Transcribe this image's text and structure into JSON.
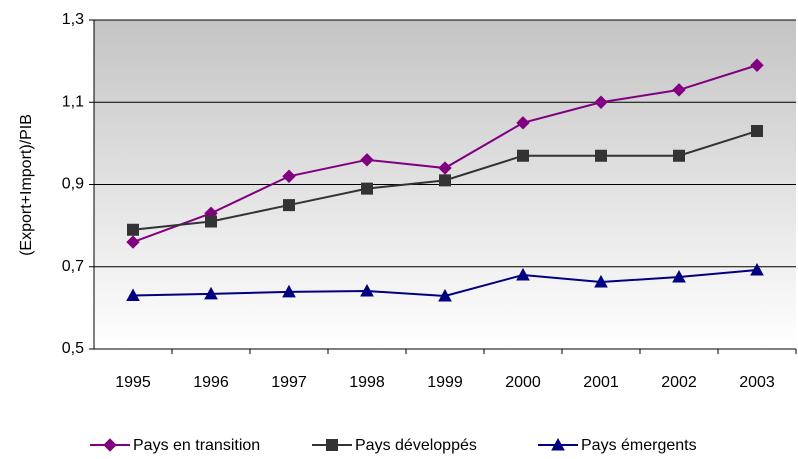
{
  "chart_data": {
    "type": "line",
    "y_label": "(Export+Import)/PIB",
    "categories": [
      "1995",
      "1996",
      "1997",
      "1998",
      "1999",
      "2000",
      "2001",
      "2002",
      "2003"
    ],
    "series": [
      {
        "name": "Pays en transition",
        "color": "#800080",
        "marker": "diamond",
        "values": [
          0.76,
          0.83,
          0.92,
          0.96,
          0.94,
          1.05,
          1.1,
          1.13,
          1.19
        ]
      },
      {
        "name": "Pays développés",
        "color": "#333333",
        "marker": "square",
        "values": [
          0.79,
          0.81,
          0.85,
          0.89,
          0.91,
          0.97,
          0.97,
          0.97,
          1.03
        ]
      },
      {
        "name": "Pays émergents",
        "color": "#000080",
        "marker": "triangle",
        "values": [
          0.63,
          0.634,
          0.639,
          0.641,
          0.629,
          0.68,
          0.663,
          0.675,
          0.692
        ]
      }
    ],
    "ylim": [
      0.5,
      1.3
    ],
    "yticks": [
      {
        "value": 0.5,
        "label": "0,5"
      },
      {
        "value": 0.7,
        "label": "0,7"
      },
      {
        "value": 0.9,
        "label": "0,9"
      },
      {
        "value": 1.1,
        "label": "1,1"
      },
      {
        "value": 1.3,
        "label": "1,3"
      }
    ],
    "grid": true,
    "legend": "bottom"
  }
}
